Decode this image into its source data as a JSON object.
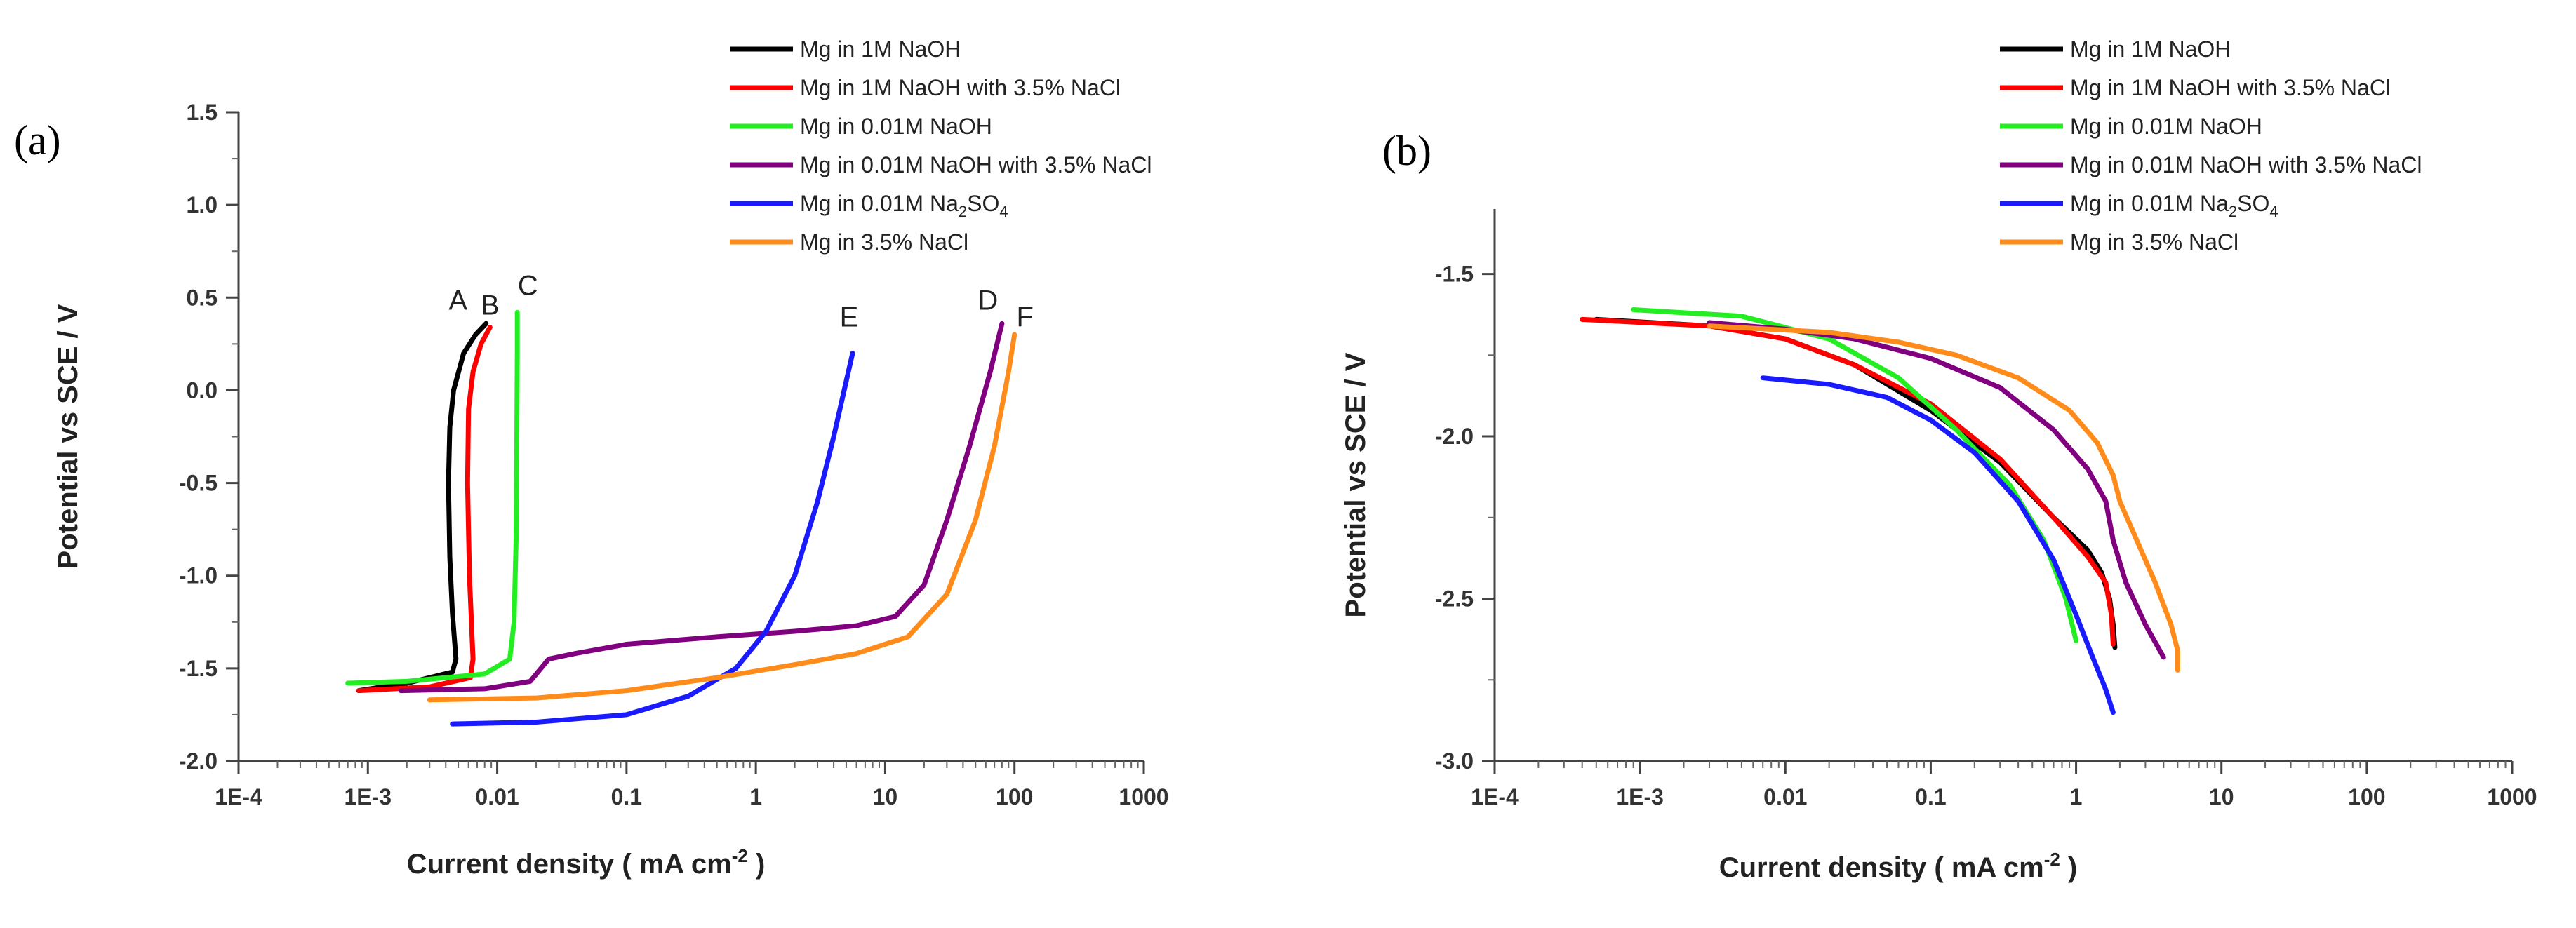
{
  "chart_data": [
    {
      "type": "line",
      "panel_label": "(a)",
      "xlabel": "Current density ( mA cm",
      "xlabel_sup": "-2",
      "xlabel_end": ")",
      "ylabel": "Potential vs SCE / V",
      "xscale": "log",
      "xlim": [
        0.0001,
        1000
      ],
      "ylim": [
        -2.0,
        1.5
      ],
      "x_ticks": [
        0.0001,
        0.001,
        0.01,
        0.1,
        1,
        10,
        100,
        1000
      ],
      "x_tick_labels": [
        "1E-4",
        "1E-3",
        "0.01",
        "0.1",
        "1",
        "10",
        "100",
        "1000"
      ],
      "y_ticks": [
        -2.0,
        -1.5,
        -1.0,
        -0.5,
        0.0,
        0.5,
        1.0,
        1.5
      ],
      "y_tick_labels": [
        "-2.0",
        "-1.5",
        "-1.0",
        "-0.5",
        "0.0",
        "0.5",
        "1.0",
        "1.5"
      ],
      "legend": [
        {
          "text": "Mg in 1M NaOH",
          "color": "#000000"
        },
        {
          "text": "Mg in 1M NaOH with 3.5% NaCl",
          "color": "#ff0000"
        },
        {
          "text": " Mg in 0.01M NaOH",
          "color": "#22ee22"
        },
        {
          "text": "Mg in 0.01M NaOH with 3.5% NaCl",
          "color": "#800080"
        },
        {
          "text": "Mg in 0.01M Na",
          "sub": "2",
          "text_end": "SO",
          "sub2": "4",
          "color": "#1a1aff"
        },
        {
          "text": "Mg in 3.5% NaCl",
          "color": "#ff8c1a"
        }
      ],
      "series": [
        {
          "name": "Mg in 1M NaOH",
          "label": "A",
          "color": "#000000",
          "x": [
            0.00085,
            0.002,
            0.0045,
            0.0048,
            0.0045,
            0.0043,
            0.0042,
            0.0043,
            0.0046,
            0.0055,
            0.0068,
            0.0082
          ],
          "y": [
            -1.62,
            -1.58,
            -1.52,
            -1.45,
            -1.2,
            -0.9,
            -0.5,
            -0.2,
            0.0,
            0.2,
            0.3,
            0.36
          ]
        },
        {
          "name": "Mg in 1M NaOH with 3.5% NaCl",
          "label": "B",
          "color": "#ff0000",
          "x": [
            0.00085,
            0.003,
            0.0062,
            0.0065,
            0.0061,
            0.0059,
            0.006,
            0.0065,
            0.0075,
            0.0088
          ],
          "y": [
            -1.62,
            -1.6,
            -1.55,
            -1.45,
            -1.0,
            -0.5,
            -0.1,
            0.1,
            0.25,
            0.34
          ]
        },
        {
          "name": "Mg in 0.01M NaOH",
          "label": "C",
          "color": "#22ee22",
          "x": [
            0.0007,
            0.002,
            0.008,
            0.0125,
            0.0135,
            0.014,
            0.0142,
            0.0143,
            0.0143
          ],
          "y": [
            -1.58,
            -1.57,
            -1.53,
            -1.45,
            -1.25,
            -0.8,
            -0.2,
            0.2,
            0.42
          ]
        },
        {
          "name": "Mg in 0.01M NaOH with 3.5% NaCl",
          "label": "D",
          "color": "#800080",
          "x": [
            0.0018,
            0.008,
            0.018,
            0.025,
            0.04,
            0.1,
            0.5,
            2,
            6,
            12,
            20,
            30,
            45,
            65,
            80
          ],
          "y": [
            -1.62,
            -1.61,
            -1.57,
            -1.45,
            -1.42,
            -1.37,
            -1.33,
            -1.3,
            -1.27,
            -1.22,
            -1.05,
            -0.7,
            -0.3,
            0.1,
            0.36
          ]
        },
        {
          "name": "Mg in 0.01M Na2SO4",
          "label": "E",
          "color": "#1a1aff",
          "x": [
            0.0045,
            0.02,
            0.1,
            0.3,
            0.7,
            1.2,
            2,
            3,
            4,
            5,
            5.6
          ],
          "y": [
            -1.8,
            -1.79,
            -1.75,
            -1.65,
            -1.5,
            -1.3,
            -1.0,
            -0.6,
            -0.25,
            0.05,
            0.2
          ]
        },
        {
          "name": "Mg in 3.5% NaCl",
          "label": "F",
          "color": "#ff8c1a",
          "x": [
            0.003,
            0.02,
            0.1,
            0.5,
            2,
            6,
            15,
            30,
            50,
            70,
            90,
            100
          ],
          "y": [
            -1.67,
            -1.66,
            -1.62,
            -1.55,
            -1.48,
            -1.42,
            -1.33,
            -1.1,
            -0.7,
            -0.3,
            0.1,
            0.3
          ]
        }
      ]
    },
    {
      "type": "line",
      "panel_label": "(b)",
      "xlabel": "Current density ( mA cm",
      "xlabel_sup": "-2",
      "xlabel_end": ")",
      "ylabel": "Potential vs SCE / V",
      "xscale": "log",
      "xlim": [
        0.0001,
        1000
      ],
      "ylim": [
        -3.0,
        -1.3
      ],
      "x_ticks": [
        0.0001,
        0.001,
        0.01,
        0.1,
        1,
        10,
        100,
        1000
      ],
      "x_tick_labels": [
        "1E-4",
        "1E-3",
        "0.01",
        "0.1",
        "1",
        "10",
        "100",
        "1000"
      ],
      "y_ticks": [
        -3.0,
        -2.5,
        -2.0,
        -1.5
      ],
      "y_tick_labels": [
        "-3.0",
        "-2.5",
        "-2.0",
        "-1.5"
      ],
      "legend": [
        {
          "text": "Mg in 1M NaOH",
          "color": "#000000"
        },
        {
          "text": "Mg in 1M NaOH with 3.5% NaCl",
          "color": "#ff0000"
        },
        {
          "text": " Mg in 0.01M NaOH",
          "color": "#22ee22"
        },
        {
          "text": "Mg in 0.01M NaOH with 3.5% NaCl",
          "color": "#800080"
        },
        {
          "text": "Mg in 0.01M Na",
          "sub": "2",
          "text_end": "SO",
          "sub2": "4",
          "color": "#1a1aff"
        },
        {
          "text": "Mg in 3.5% NaCl",
          "color": "#ff8c1a"
        }
      ],
      "series": [
        {
          "name": "Mg in 1M NaOH",
          "color": "#000000",
          "x": [
            0.0005,
            0.003,
            0.01,
            0.03,
            0.1,
            0.3,
            0.7,
            1.2,
            1.5,
            1.7,
            1.8,
            1.85
          ],
          "y": [
            -1.64,
            -1.66,
            -1.7,
            -1.78,
            -1.92,
            -2.08,
            -2.25,
            -2.35,
            -2.42,
            -2.5,
            -2.58,
            -2.65
          ]
        },
        {
          "name": "Mg in 1M NaOH with 3.5% NaCl",
          "color": "#ff0000",
          "x": [
            0.0004,
            0.003,
            0.01,
            0.03,
            0.1,
            0.3,
            0.7,
            1.2,
            1.6,
            1.75,
            1.8
          ],
          "y": [
            -1.64,
            -1.66,
            -1.7,
            -1.78,
            -1.9,
            -2.07,
            -2.25,
            -2.37,
            -2.45,
            -2.55,
            -2.64
          ]
        },
        {
          "name": "Mg in 0.01M NaOH",
          "color": "#22ee22",
          "x": [
            0.0009,
            0.005,
            0.02,
            0.06,
            0.15,
            0.35,
            0.6,
            0.85,
            1.0
          ],
          "y": [
            -1.61,
            -1.63,
            -1.7,
            -1.82,
            -1.98,
            -2.15,
            -2.32,
            -2.5,
            -2.63
          ]
        },
        {
          "name": "Mg in 0.01M NaOH with 3.5% NaCl",
          "color": "#800080",
          "x": [
            0.003,
            0.01,
            0.03,
            0.1,
            0.3,
            0.7,
            1.2,
            1.6,
            1.8,
            2.2,
            3.0,
            4.0
          ],
          "y": [
            -1.65,
            -1.67,
            -1.7,
            -1.76,
            -1.85,
            -1.98,
            -2.1,
            -2.2,
            -2.32,
            -2.45,
            -2.58,
            -2.68
          ]
        },
        {
          "name": "Mg in 0.01M Na2SO4",
          "color": "#1a1aff",
          "x": [
            0.007,
            0.02,
            0.05,
            0.1,
            0.2,
            0.4,
            0.7,
            1.0,
            1.3,
            1.6,
            1.8
          ],
          "y": [
            -1.82,
            -1.84,
            -1.88,
            -1.95,
            -2.05,
            -2.2,
            -2.38,
            -2.55,
            -2.68,
            -2.78,
            -2.85
          ]
        },
        {
          "name": "Mg in 3.5% NaCl",
          "color": "#ff8c1a",
          "x": [
            0.003,
            0.02,
            0.06,
            0.15,
            0.4,
            0.9,
            1.4,
            1.8,
            2.0,
            2.5,
            3.5,
            4.5,
            5.0,
            5.0
          ],
          "y": [
            -1.66,
            -1.68,
            -1.71,
            -1.75,
            -1.82,
            -1.92,
            -2.02,
            -2.12,
            -2.2,
            -2.3,
            -2.45,
            -2.58,
            -2.66,
            -2.72
          ]
        }
      ]
    }
  ]
}
